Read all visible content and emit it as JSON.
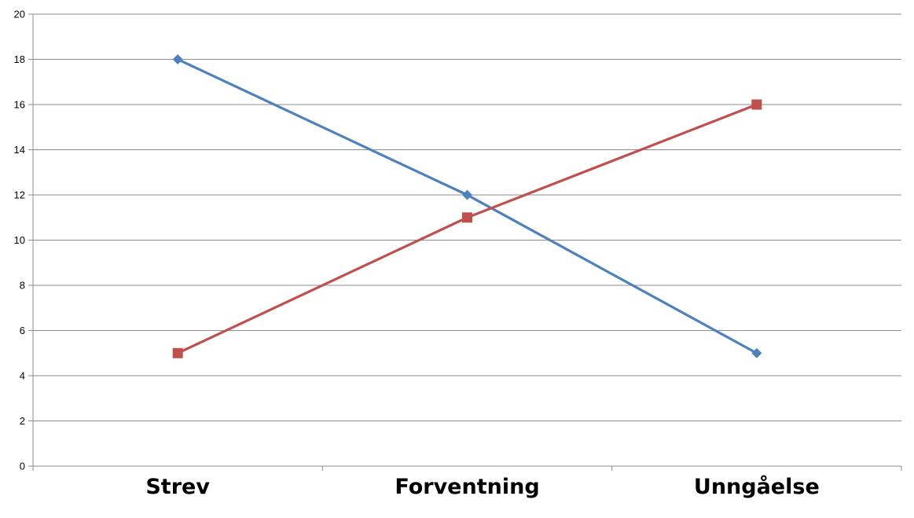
{
  "chart_data": {
    "type": "line",
    "title": "",
    "xlabel": "",
    "ylabel": "",
    "categories": [
      "Strev",
      "Forventning",
      "Unngåelse"
    ],
    "ylim": [
      0,
      20
    ],
    "y_ticks": [
      "0",
      "2",
      "4",
      "6",
      "8",
      "10",
      "12",
      "14",
      "16",
      "18",
      "20"
    ],
    "grid": true,
    "legend": "none",
    "series": [
      {
        "values": [
          18,
          12,
          5
        ],
        "color": "#4f81bd",
        "marker": "diamond"
      },
      {
        "values": [
          5,
          11,
          16
        ],
        "color": "#c0504d",
        "marker": "square"
      }
    ]
  }
}
